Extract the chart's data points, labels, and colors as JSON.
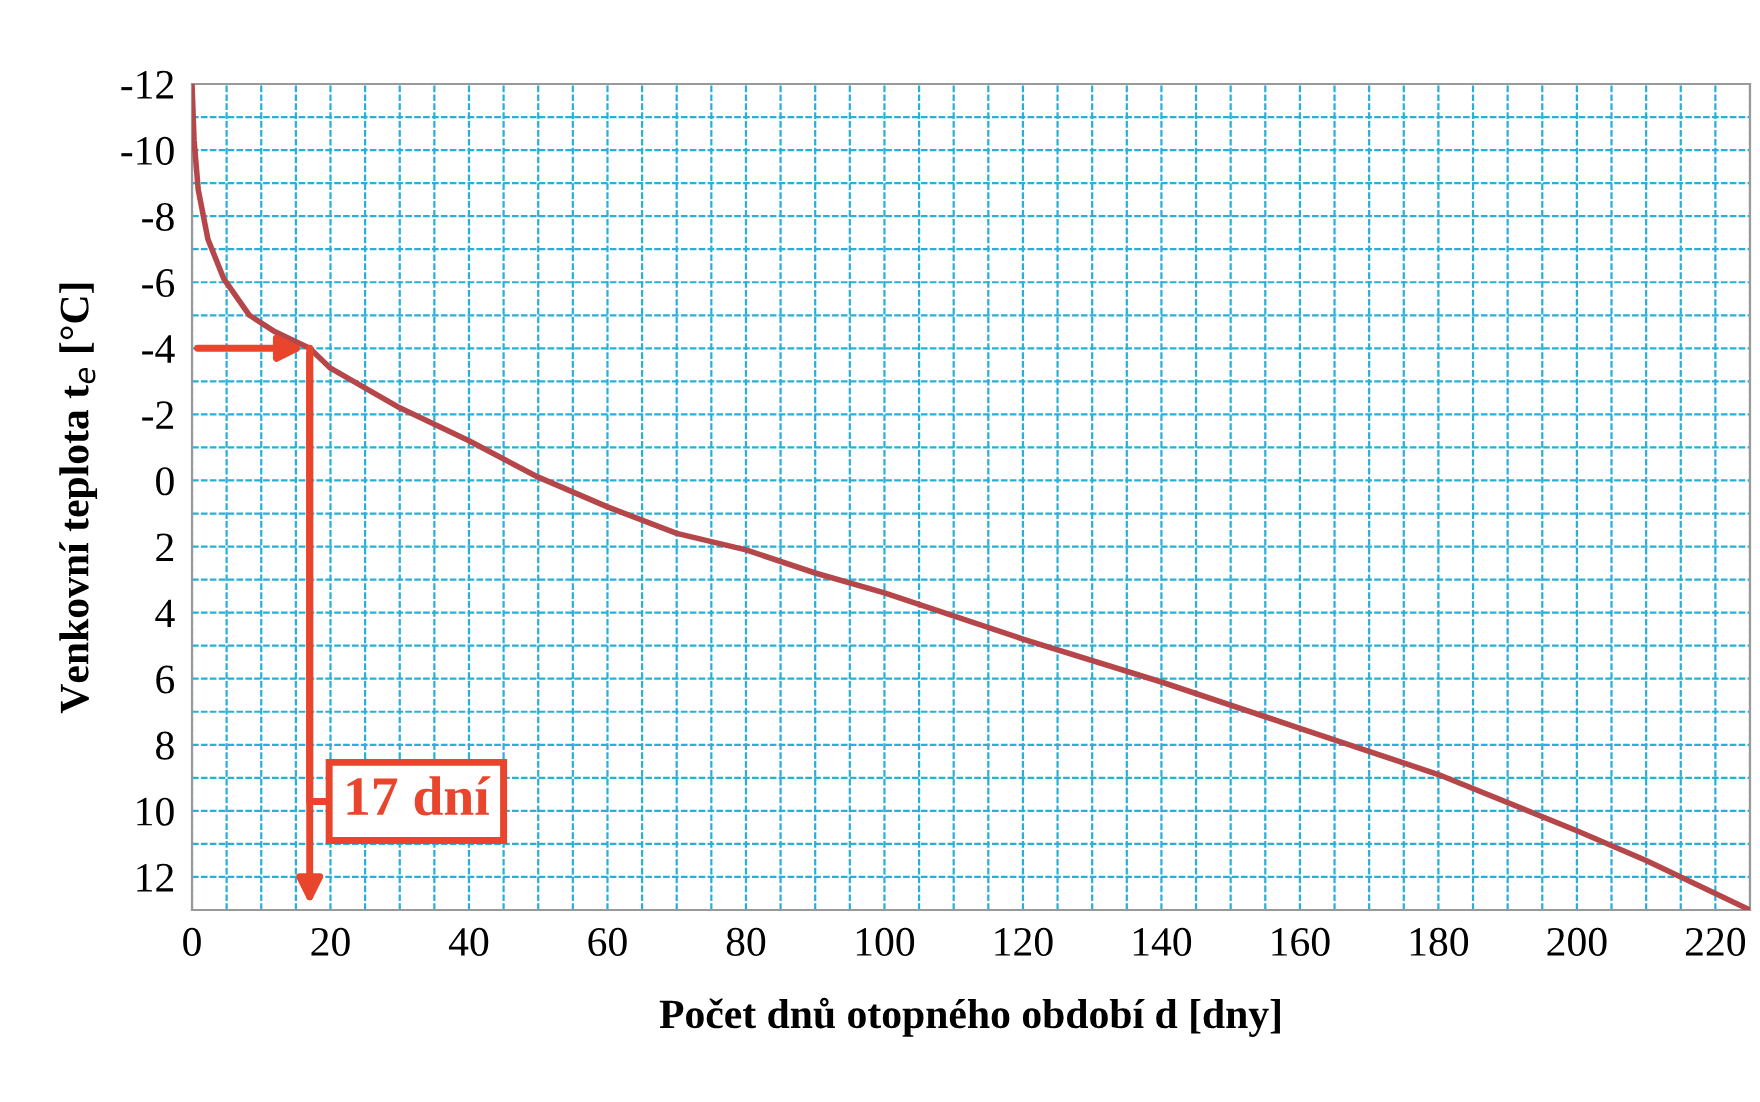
{
  "chart_data": {
    "type": "line",
    "xlabel": "Počet dnů otopného období d [dny]",
    "ylabel": "Venkovní teplota t$_{e}$ [°C]",
    "series": [
      {
        "color": "#b5474b",
        "x": [
          0,
          0.3,
          0.9,
          2.3,
          4.6,
          8.3,
          12,
          17,
          20,
          30,
          40,
          50,
          60,
          70,
          80,
          90,
          100,
          120,
          140,
          160,
          180,
          200,
          210,
          220,
          225
        ],
        "values": [
          -12,
          -10.3,
          -8.8,
          -7.3,
          -6.1,
          -5,
          -4.5,
          -4,
          -3.4,
          -2.2,
          -1.2,
          -0.1,
          0.8,
          1.6,
          2.1,
          2.8,
          3.4,
          4.8,
          6.1,
          7.5,
          8.9,
          10.6,
          11.5,
          12.5,
          13
        ]
      }
    ],
    "xlim": [
      0,
      225
    ],
    "ylim": [
      13,
      -12
    ],
    "xticks": [
      0,
      {
        "value": 5,
        "label": null
      },
      {
        "value": 10,
        "label": null
      },
      {
        "value": 15,
        "label": null
      },
      20,
      {
        "value": 25,
        "label": null
      },
      {
        "value": 30,
        "label": null
      },
      {
        "value": 35,
        "label": null
      },
      40,
      {
        "value": 45,
        "label": null
      },
      {
        "value": 50,
        "label": null
      },
      {
        "value": 55,
        "label": null
      },
      60,
      {
        "value": 65,
        "label": null
      },
      {
        "value": 70,
        "label": null
      },
      {
        "value": 75,
        "label": null
      },
      80,
      {
        "value": 85,
        "label": null
      },
      {
        "value": 90,
        "label": null
      },
      {
        "value": 95,
        "label": null
      },
      100,
      {
        "value": 105,
        "label": null
      },
      {
        "value": 110,
        "label": null
      },
      {
        "value": 115,
        "label": null
      },
      120,
      {
        "value": 125,
        "label": null
      },
      {
        "value": 130,
        "label": null
      },
      {
        "value": 135,
        "label": null
      },
      140,
      {
        "value": 145,
        "label": null
      },
      {
        "value": 150,
        "label": null
      },
      {
        "value": 155,
        "label": null
      },
      160,
      {
        "value": 165,
        "label": null
      },
      {
        "value": 170,
        "label": null
      },
      {
        "value": 175,
        "label": null
      },
      180,
      {
        "value": 185,
        "label": null
      },
      {
        "value": 190,
        "label": null
      },
      {
        "value": 195,
        "label": null
      },
      200,
      {
        "value": 205,
        "label": null
      },
      {
        "value": 210,
        "label": null
      },
      {
        "value": 215,
        "label": null
      },
      220,
      {
        "value": 225,
        "label": null
      }
    ],
    "yticks": [
      -12,
      {
        "value": -11,
        "label": null
      },
      -10,
      {
        "value": -9,
        "label": null
      },
      -8,
      {
        "value": -7,
        "label": null
      },
      -6,
      {
        "value": -5,
        "label": null
      },
      -4,
      {
        "value": -3,
        "label": null
      },
      -2,
      {
        "value": -1,
        "label": null
      },
      0,
      {
        "value": 1,
        "label": null
      },
      2,
      {
        "value": 3,
        "label": null
      },
      4,
      {
        "value": 5,
        "label": null
      },
      6,
      {
        "value": 7,
        "label": null
      },
      8,
      {
        "value": 9,
        "label": null
      },
      10,
      {
        "value": 11,
        "label": null
      },
      12,
      {
        "value": 13,
        "label": null
      }
    ],
    "grid": true,
    "line_style": "solid",
    "annotations": [
      {
        "text": "17 dní",
        "x": 17,
        "y": -4
      }
    ]
  }
}
